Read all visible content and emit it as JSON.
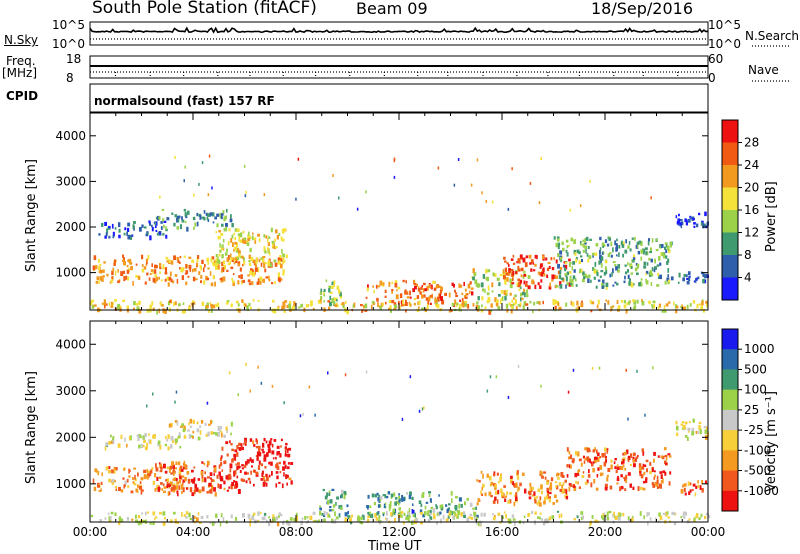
{
  "header": {
    "title": "South Pole Station (fitACF)",
    "beam": "Beam 09",
    "date": "18/Sep/2016",
    "cpid_label": "CPID",
    "program": "normalsound (fast) 157 RF"
  },
  "strip_panels": {
    "nsky": {
      "label": "N.Sky",
      "ticks": [
        "10^5",
        "10^0"
      ]
    },
    "nsearch": {
      "label": "N.Search",
      "ticks": [
        "10^5",
        "10^0"
      ]
    },
    "freq": {
      "label_line1": "Freq.",
      "label_line2": "[MHz]",
      "ticks": [
        "18",
        "8"
      ]
    },
    "nave": {
      "label": "Nave",
      "ticks": [
        "60",
        "0"
      ]
    }
  },
  "x_axis": {
    "label": "Time UT",
    "ticks": [
      "00:00",
      "04:00",
      "08:00",
      "12:00",
      "16:00",
      "20:00",
      "00:00"
    ]
  },
  "colors": {
    "power_scale": [
      "#1a1aff",
      "#2f5faa",
      "#3f9a6f",
      "#9bd24a",
      "#f4e23b",
      "#f29a1f",
      "#f05a12",
      "#ee1111"
    ],
    "velocity_scale": [
      "#ee1111",
      "#f0581e",
      "#f59a20",
      "#f6cf3a",
      "#c9c9c9",
      "#9bd24a",
      "#3f9a6f",
      "#2a6aaa",
      "#1a1aee"
    ]
  },
  "chart_data": [
    {
      "type": "heatmap",
      "name": "power-panel",
      "ylabel": "Slant Range [km]",
      "ylim": [
        180,
        4500
      ],
      "xlim_hours": [
        0,
        24
      ],
      "yticks": [
        "1000",
        "2000",
        "3000",
        "4000"
      ],
      "colorbar": {
        "label": "Power [dB]",
        "ticks": [
          "4",
          "8",
          "12",
          "16",
          "20",
          "24",
          "28"
        ]
      },
      "scatter_regions": [
        {
          "t0": 0.1,
          "t1": 7.6,
          "r0": 780,
          "r1": 1400,
          "level": 0.7
        },
        {
          "t0": 0.3,
          "t1": 3.0,
          "r0": 1800,
          "r1": 2150,
          "level": 0.18
        },
        {
          "t0": 2.5,
          "t1": 5.5,
          "r0": 2000,
          "r1": 2400,
          "level": 0.3
        },
        {
          "t0": 4.8,
          "t1": 7.6,
          "r0": 1200,
          "r1": 2000,
          "level": 0.55
        },
        {
          "t0": 8.9,
          "t1": 9.8,
          "r0": 300,
          "r1": 900,
          "level": 0.45
        },
        {
          "t0": 10.7,
          "t1": 14.8,
          "r0": 300,
          "r1": 850,
          "level": 0.75
        },
        {
          "t0": 14.8,
          "t1": 17.0,
          "r0": 400,
          "r1": 1100,
          "level": 0.5
        },
        {
          "t0": 16.0,
          "t1": 18.6,
          "r0": 700,
          "r1": 1400,
          "level": 0.85
        },
        {
          "t0": 18.0,
          "t1": 22.6,
          "r0": 700,
          "r1": 1800,
          "level": 0.35
        },
        {
          "t0": 22.8,
          "t1": 24.0,
          "r0": 800,
          "r1": 1100,
          "level": 0.15
        },
        {
          "t0": 22.7,
          "t1": 24.0,
          "r0": 2000,
          "r1": 2400,
          "level": 0.12
        },
        {
          "t0": 0.0,
          "t1": 24.0,
          "r0": 180,
          "r1": 420,
          "level": 0.6
        }
      ]
    },
    {
      "type": "heatmap",
      "name": "velocity-panel",
      "ylabel": "Slant Range [km]",
      "ylim": [
        180,
        4500
      ],
      "xlim_hours": [
        0,
        24
      ],
      "yticks": [
        "1000",
        "2000",
        "3000",
        "4000"
      ],
      "colorbar": {
        "label": "Velocity [m s⁻¹]",
        "ticks": [
          "1000",
          "500",
          "100",
          "25",
          "-25",
          "-100",
          "-500",
          "-1000"
        ]
      },
      "scatter_regions": [
        {
          "t0": 0.1,
          "t1": 3.6,
          "r0": 850,
          "r1": 1400,
          "level": 0.28
        },
        {
          "t0": 2.5,
          "t1": 5.8,
          "r0": 800,
          "r1": 1500,
          "level": 0.15
        },
        {
          "t0": 5.0,
          "t1": 7.8,
          "r0": 1000,
          "r1": 2000,
          "level": 0.05
        },
        {
          "t0": 0.5,
          "t1": 3.5,
          "r0": 1800,
          "r1": 2100,
          "level": 0.5
        },
        {
          "t0": 3.0,
          "t1": 5.5,
          "r0": 2000,
          "r1": 2400,
          "level": 0.45
        },
        {
          "t0": 8.9,
          "t1": 10.0,
          "r0": 300,
          "r1": 900,
          "level": 0.7
        },
        {
          "t0": 10.7,
          "t1": 15.0,
          "r0": 300,
          "r1": 850,
          "level": 0.72
        },
        {
          "t0": 15.0,
          "t1": 18.5,
          "r0": 600,
          "r1": 1300,
          "level": 0.25
        },
        {
          "t0": 18.5,
          "t1": 22.5,
          "r0": 900,
          "r1": 1800,
          "level": 0.18
        },
        {
          "t0": 22.8,
          "t1": 24.0,
          "r0": 800,
          "r1": 1100,
          "level": 0.2
        },
        {
          "t0": 22.7,
          "t1": 24.0,
          "r0": 2000,
          "r1": 2400,
          "level": 0.48
        },
        {
          "t0": 0.0,
          "t1": 24.0,
          "r0": 180,
          "r1": 420,
          "level": 0.5
        }
      ]
    }
  ]
}
